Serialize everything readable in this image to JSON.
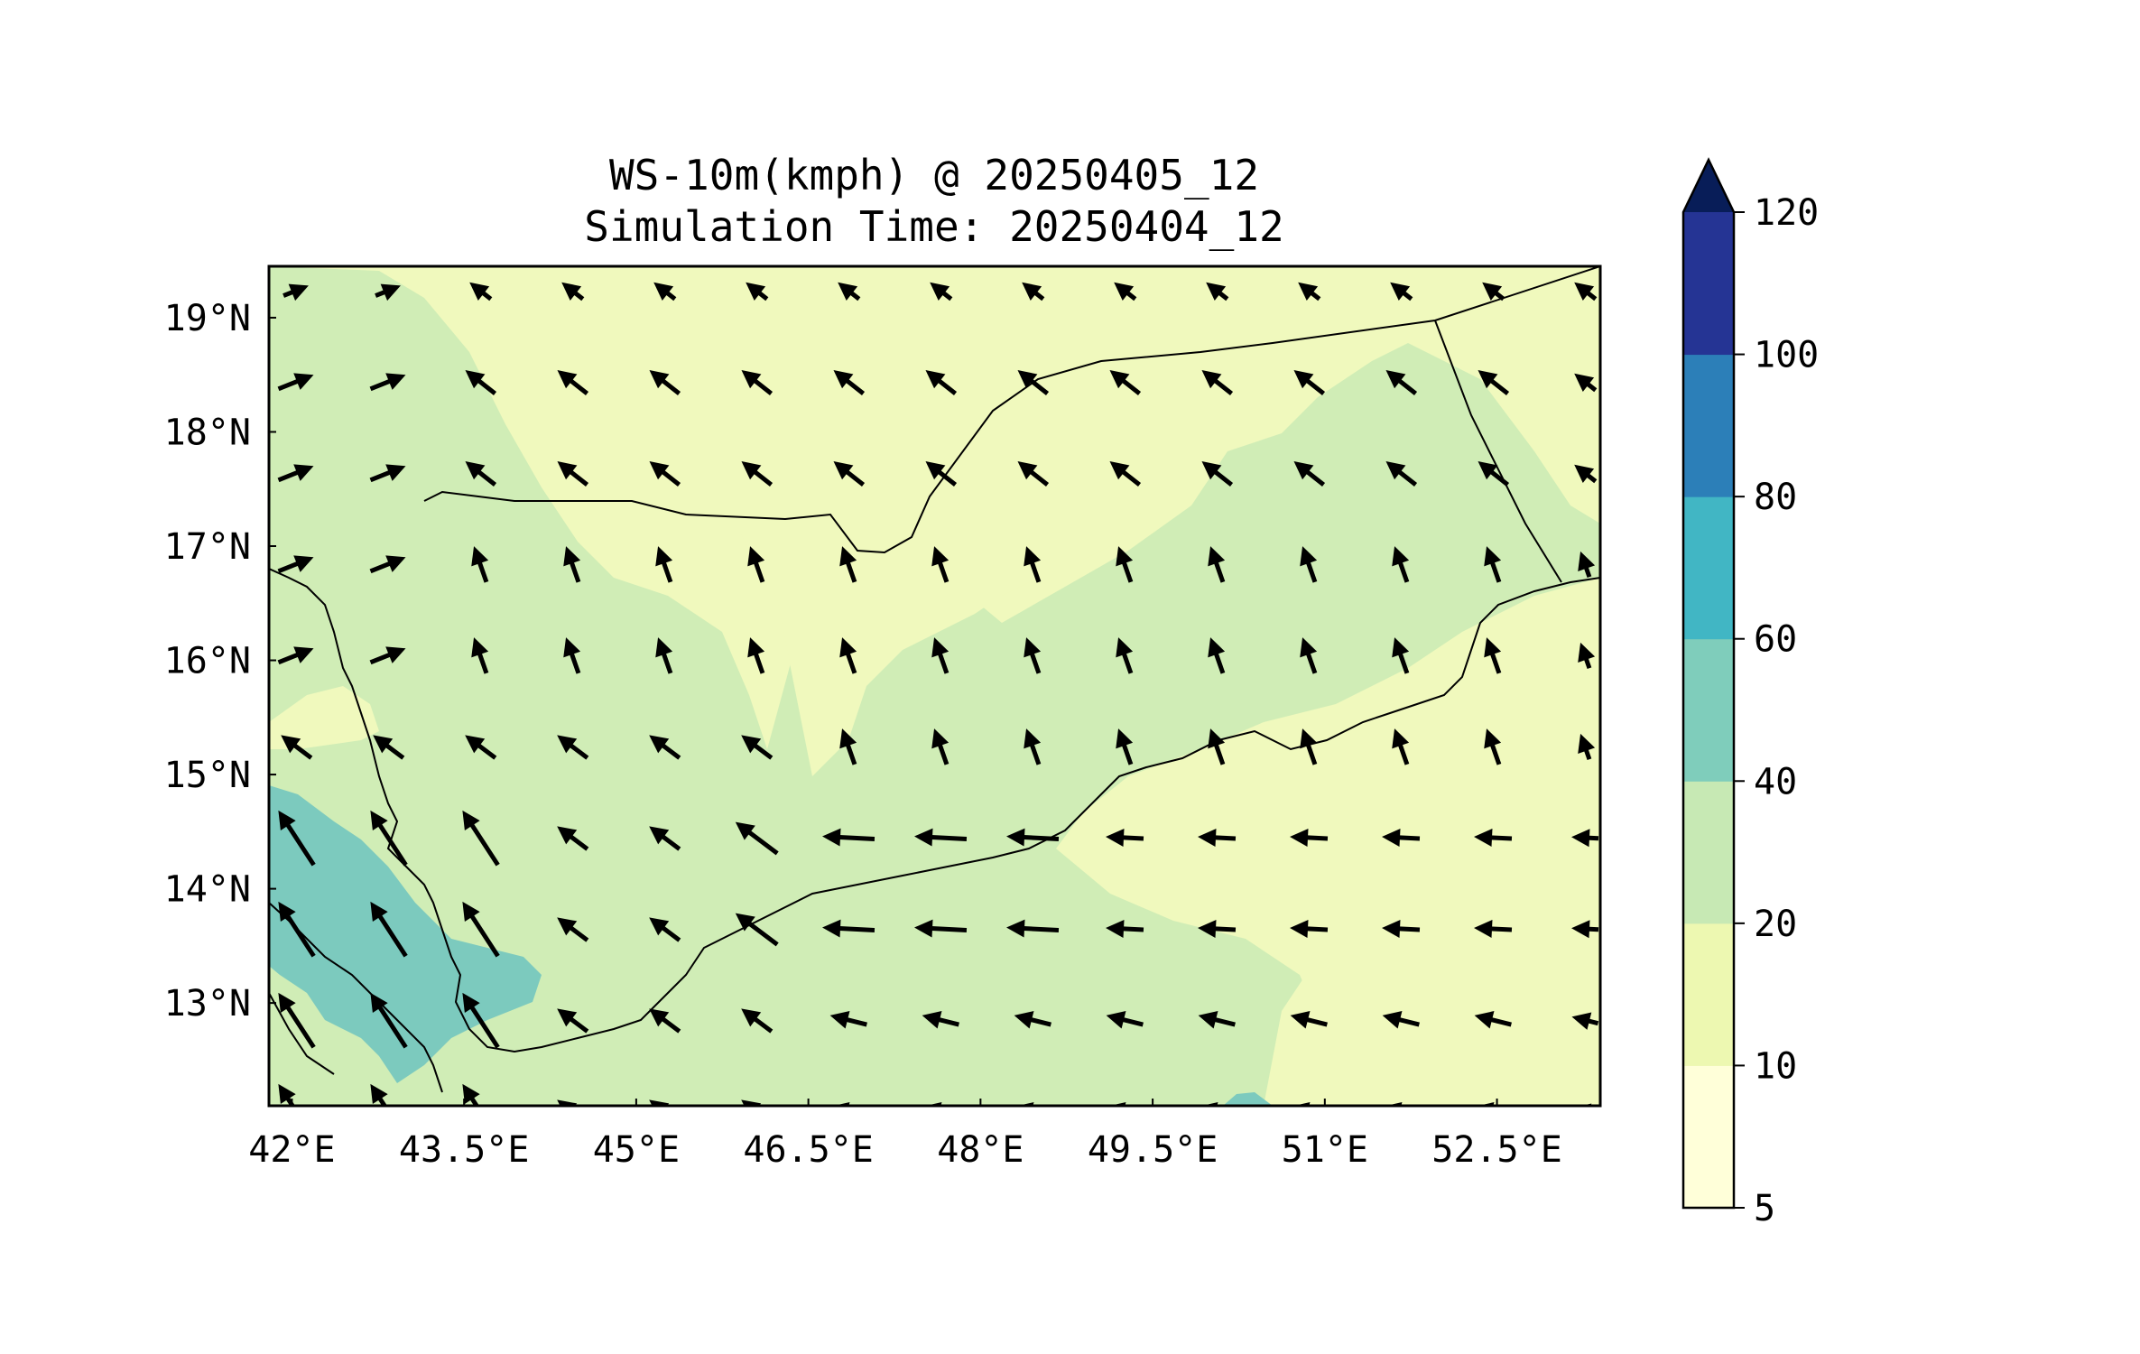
{
  "chart_data": {
    "type": "map",
    "title_line1": "WS-10m(kmph) @ 20250405_12",
    "title_line2": "Simulation Time: 20250404_12",
    "variable": "Wind speed at 10 m (kmph) with wind direction vectors",
    "lon_range": [
      41.8,
      53.4
    ],
    "lat_range": [
      12.1,
      19.45
    ],
    "x_ticks": [
      {
        "value": 42,
        "label": "42°E"
      },
      {
        "value": 43.5,
        "label": "43.5°E"
      },
      {
        "value": 45,
        "label": "45°E"
      },
      {
        "value": 46.5,
        "label": "46.5°E"
      },
      {
        "value": 48,
        "label": "48°E"
      },
      {
        "value": 49.5,
        "label": "49.5°E"
      },
      {
        "value": 51,
        "label": "51°E"
      },
      {
        "value": 52.5,
        "label": "52.5°E"
      }
    ],
    "y_ticks": [
      {
        "value": 13,
        "label": "13°N"
      },
      {
        "value": 14,
        "label": "14°N"
      },
      {
        "value": 15,
        "label": "15°N"
      },
      {
        "value": 16,
        "label": "16°N"
      },
      {
        "value": 17,
        "label": "17°N"
      },
      {
        "value": 18,
        "label": "18°N"
      },
      {
        "value": 19,
        "label": "19°N"
      }
    ],
    "colorbar": {
      "levels": [
        5,
        10,
        20,
        40,
        60,
        80,
        100,
        120
      ],
      "labels": [
        "5",
        "10",
        "20",
        "40",
        "60",
        "80",
        "100",
        "120"
      ],
      "colors": [
        "#ffffd9",
        "#edf8b1",
        "#c7e9b4",
        "#7fcdbb",
        "#41b6c4",
        "#2c7fb8",
        "#253494"
      ],
      "extend_color": "#081d58",
      "extend": "max"
    },
    "region_colors": {
      "low": "#f0f9bd",
      "mid": "#d0edb6",
      "high": "#7ccabe"
    }
  }
}
